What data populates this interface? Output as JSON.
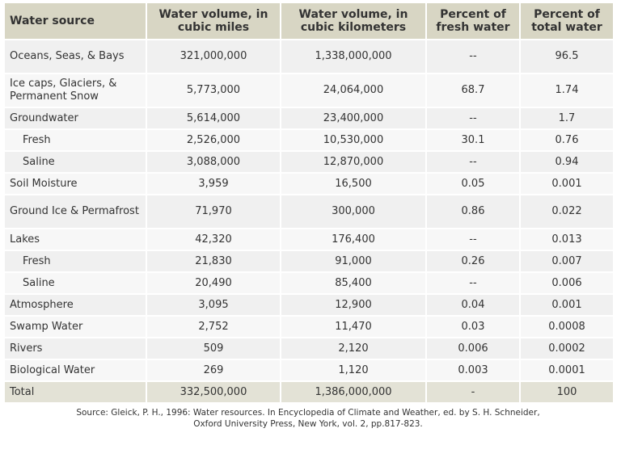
{
  "table": {
    "header": [
      "Water source",
      "Water volume, in cubic miles",
      "Water volume, in cubic kilometers",
      "Percent of fresh water",
      "Percent of total water"
    ],
    "rows": [
      {
        "cells": [
          "Oceans, Seas, & Bays",
          "321,000,000",
          "1,338,000,000",
          "--",
          "96.5"
        ]
      },
      {
        "cells": [
          "Ice caps, Glaciers, & Permanent Snow",
          "5,773,000",
          "24,064,000",
          "68.7",
          "1.74"
        ]
      },
      {
        "cells": [
          "Groundwater",
          "5,614,000",
          "23,400,000",
          "--",
          "1.7"
        ]
      },
      {
        "cells": [
          "Fresh",
          "2,526,000",
          "10,530,000",
          "30.1",
          "0.76"
        ],
        "level": 1
      },
      {
        "cells": [
          "Saline",
          "3,088,000",
          "12,870,000",
          "--",
          "0.94"
        ],
        "level": 1
      },
      {
        "cells": [
          "Soil Moisture",
          "3,959",
          "16,500",
          "0.05",
          "0.001"
        ]
      },
      {
        "cells": [
          "Ground Ice & Permafrost",
          "71,970",
          "300,000",
          "0.86",
          "0.022"
        ]
      },
      {
        "cells": [
          "Lakes",
          "42,320",
          "176,400",
          "--",
          "0.013"
        ]
      },
      {
        "cells": [
          "Fresh",
          "21,830",
          "91,000",
          "0.26",
          "0.007"
        ],
        "level": 1
      },
      {
        "cells": [
          "Saline",
          "20,490",
          "85,400",
          "--",
          "0.006"
        ],
        "level": 1
      },
      {
        "cells": [
          "Atmosphere",
          "3,095",
          "12,900",
          "0.04",
          "0.001"
        ]
      },
      {
        "cells": [
          "Swamp Water",
          "2,752",
          "11,470",
          "0.03",
          "0.0008"
        ]
      },
      {
        "cells": [
          "Rivers",
          "509",
          "2,120",
          "0.006",
          "0.0002"
        ]
      },
      {
        "cells": [
          "Biological Water",
          "269",
          "1,120",
          "0.003",
          "0.0001"
        ]
      }
    ],
    "total": [
      "Total",
      "332,500,000",
      "1,386,000,000",
      "-",
      "100"
    ]
  },
  "source": [
    "Source: Gleick, P. H., 1996: Water resources. In Encyclopedia of Climate and Weather, ed. by S. H. Schneider,",
    "Oxford University Press, New York, vol. 2, pp.817-823."
  ]
}
